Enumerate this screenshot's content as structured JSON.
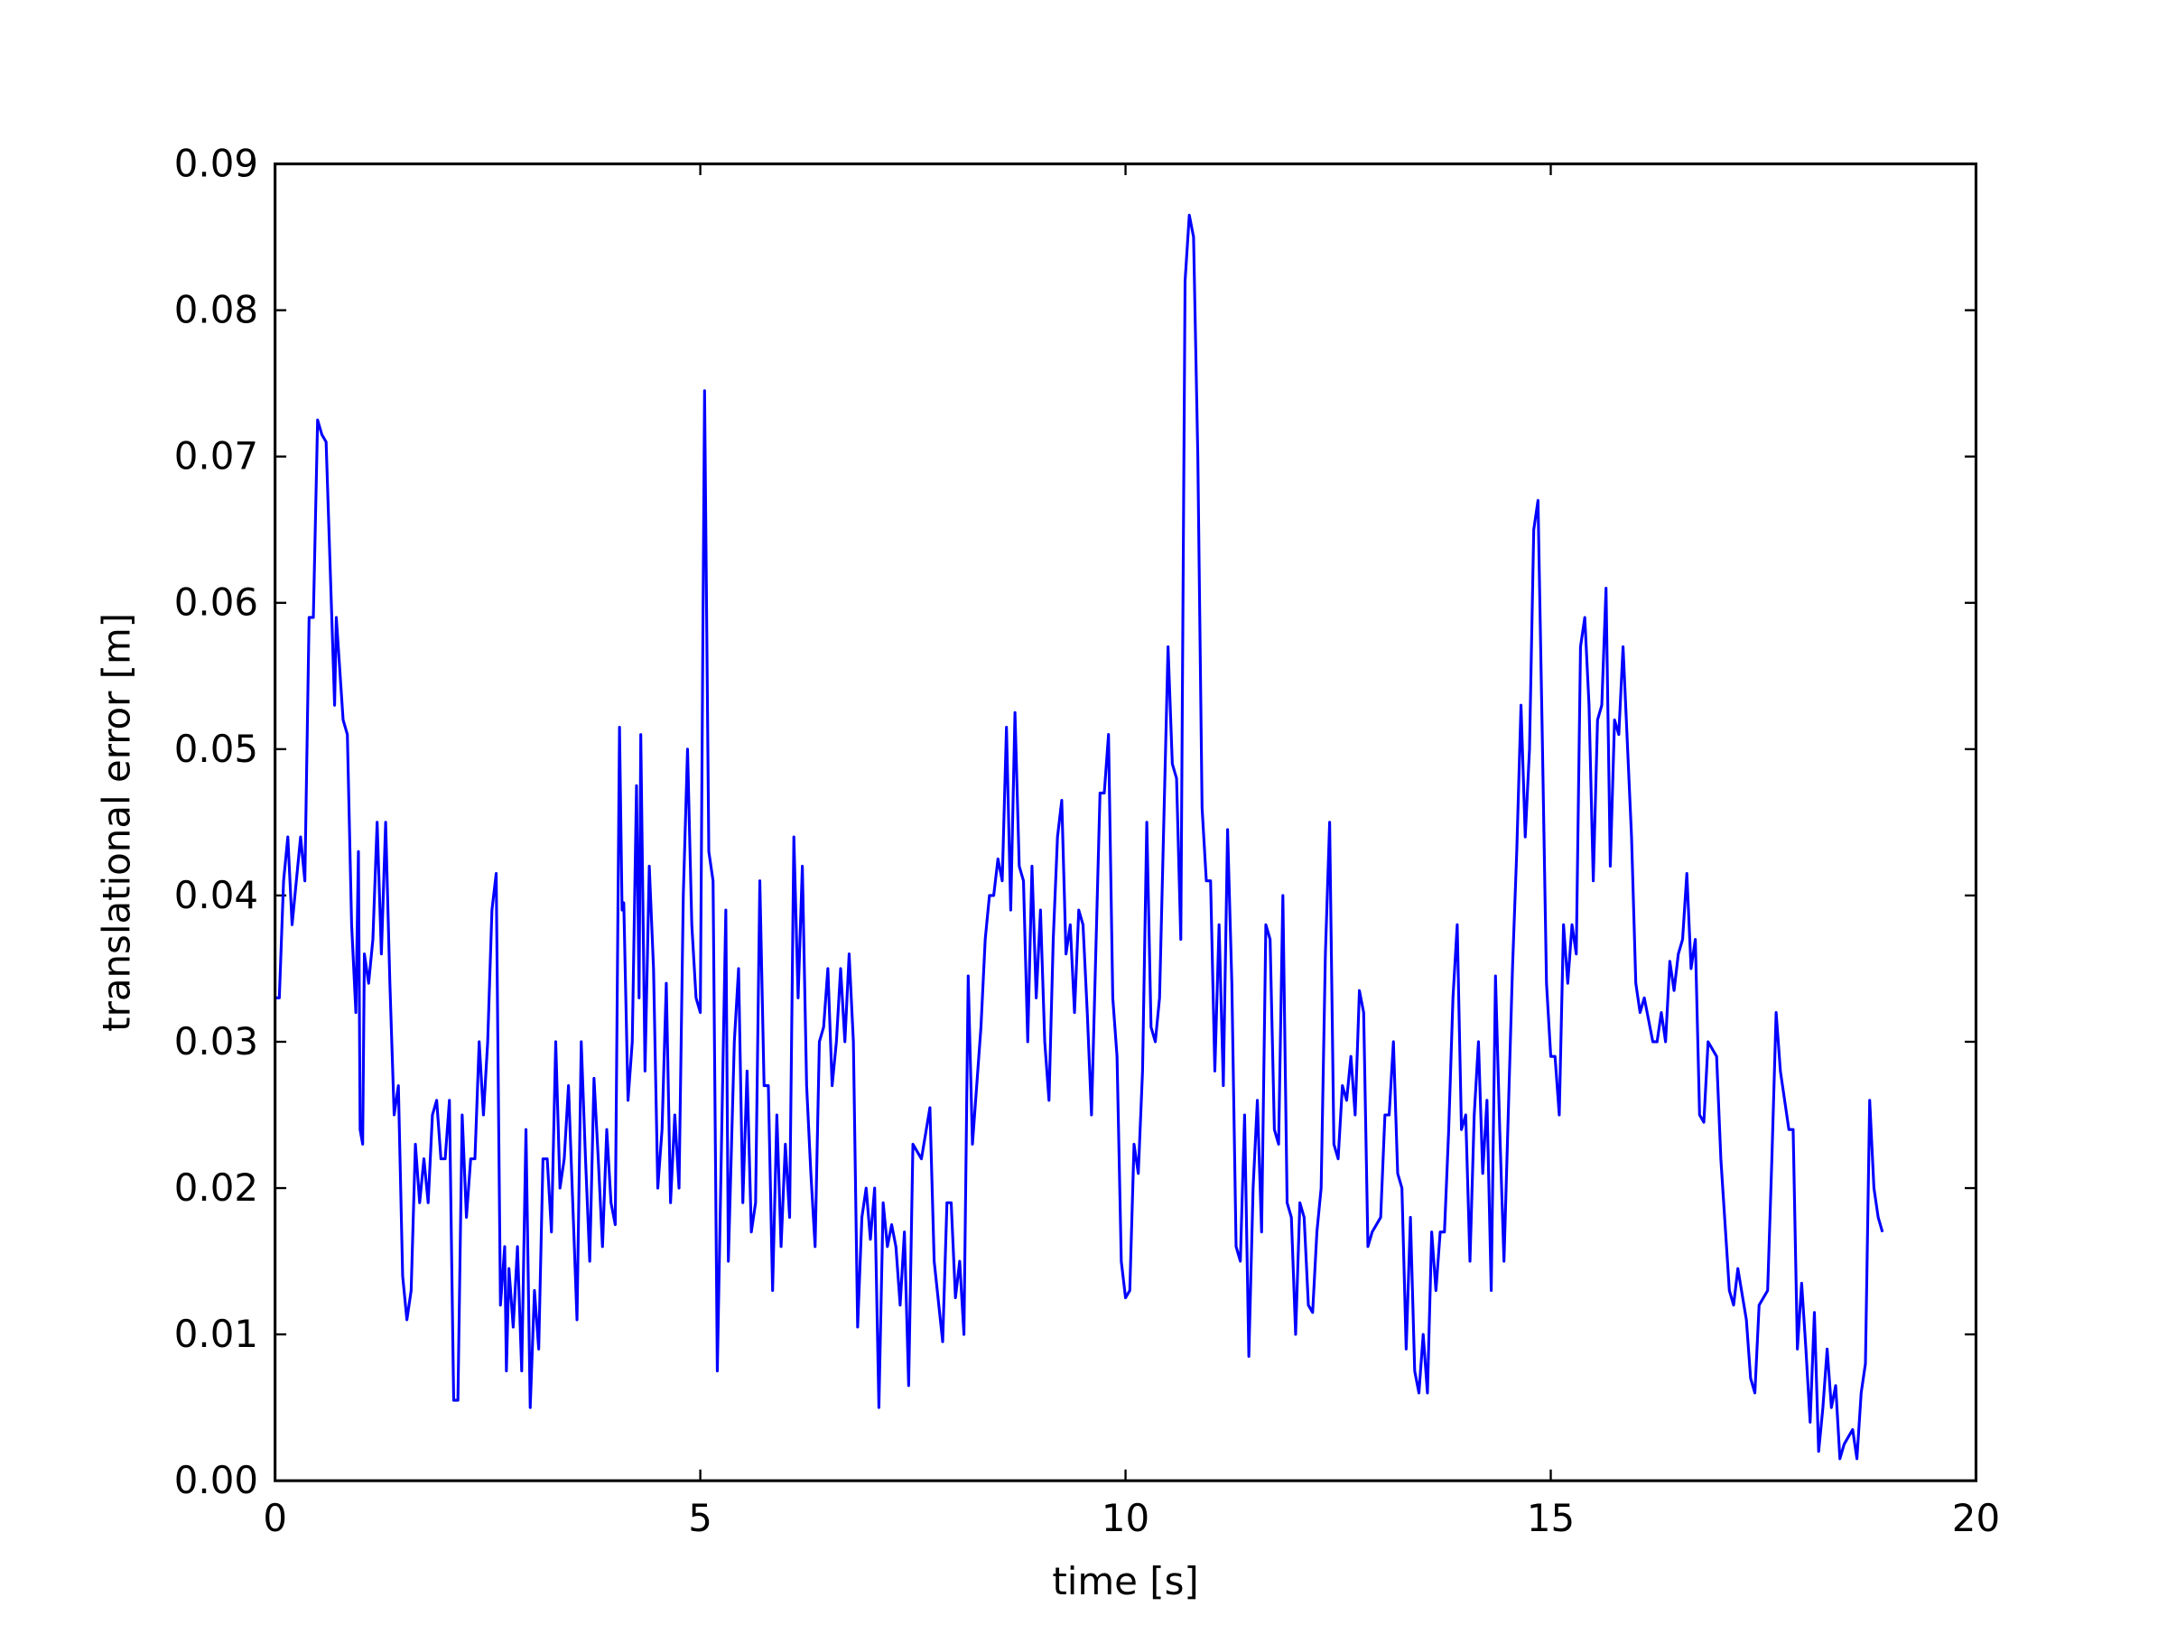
{
  "chart_data": {
    "type": "line",
    "xlabel": "time [s]",
    "ylabel": "translational error [m]",
    "xlim": [
      0,
      20
    ],
    "xticks": [
      0,
      5,
      10,
      15,
      20
    ],
    "ylim": [
      0,
      0.09
    ],
    "yticks": [
      {
        "value": 0,
        "label": "0.00"
      },
      0.01,
      0.02,
      0.03,
      0.04,
      0.05,
      0.06,
      0.07,
      0.08,
      0.09
    ],
    "grid": false,
    "x": [
      0,
      0.05,
      0.1,
      0.15,
      0.2,
      0.3,
      0.35,
      0.4,
      0.45,
      0.5,
      0.55,
      0.6,
      0.7,
      0.72,
      0.8,
      0.85,
      0.9,
      0.95,
      0.98,
      1.0,
      1.03,
      1.05,
      1.1,
      1.15,
      1.2,
      1.25,
      1.3,
      1.35,
      1.4,
      1.45,
      1.5,
      1.55,
      1.6,
      1.65,
      1.7,
      1.75,
      1.8,
      1.85,
      1.9,
      1.95,
      2.0,
      2.05,
      2.1,
      2.15,
      2.2,
      2.25,
      2.3,
      2.35,
      2.4,
      2.45,
      2.5,
      2.55,
      2.6,
      2.65,
      2.7,
      2.72,
      2.75,
      2.8,
      2.85,
      2.9,
      2.95,
      3.0,
      3.05,
      3.1,
      3.15,
      3.2,
      3.25,
      3.3,
      3.35,
      3.4,
      3.45,
      3.5,
      3.55,
      3.6,
      3.65,
      3.7,
      3.75,
      3.8,
      3.85,
      3.9,
      3.95,
      4.0,
      4.05,
      4.08,
      4.1,
      4.15,
      4.2,
      4.25,
      4.28,
      4.3,
      4.35,
      4.4,
      4.45,
      4.5,
      4.55,
      4.6,
      4.65,
      4.7,
      4.75,
      4.8,
      4.85,
      4.9,
      4.95,
      5.0,
      5.05,
      5.1,
      5.15,
      5.2,
      5.3,
      5.33,
      5.4,
      5.45,
      5.5,
      5.55,
      5.6,
      5.65,
      5.7,
      5.75,
      5.8,
      5.85,
      5.9,
      5.95,
      6.0,
      6.05,
      6.1,
      6.15,
      6.2,
      6.25,
      6.3,
      6.35,
      6.4,
      6.45,
      6.5,
      6.55,
      6.6,
      6.65,
      6.7,
      6.75,
      6.8,
      6.85,
      6.9,
      6.95,
      7.0,
      7.05,
      7.1,
      7.15,
      7.2,
      7.25,
      7.3,
      7.35,
      7.4,
      7.45,
      7.5,
      7.6,
      7.7,
      7.75,
      7.85,
      7.9,
      7.95,
      8.0,
      8.05,
      8.1,
      8.15,
      8.2,
      8.3,
      8.35,
      8.4,
      8.45,
      8.5,
      8.55,
      8.6,
      8.65,
      8.7,
      8.75,
      8.8,
      8.85,
      8.9,
      8.95,
      9.0,
      9.05,
      9.1,
      9.15,
      9.2,
      9.25,
      9.3,
      9.35,
      9.4,
      9.45,
      9.5,
      9.55,
      9.6,
      9.65,
      9.7,
      9.75,
      9.8,
      9.85,
      9.9,
      9.95,
      10.0,
      10.05,
      10.1,
      10.15,
      10.2,
      10.25,
      10.3,
      10.35,
      10.4,
      10.5,
      10.55,
      10.6,
      10.65,
      10.7,
      10.75,
      10.8,
      10.85,
      10.9,
      10.95,
      11.0,
      11.05,
      11.1,
      11.15,
      11.2,
      11.25,
      11.3,
      11.35,
      11.4,
      11.45,
      11.5,
      11.55,
      11.6,
      11.65,
      11.7,
      11.75,
      11.8,
      11.85,
      11.9,
      11.95,
      12.0,
      12.05,
      12.1,
      12.15,
      12.2,
      12.25,
      12.3,
      12.35,
      12.4,
      12.45,
      12.5,
      12.55,
      12.6,
      12.65,
      12.7,
      12.75,
      12.8,
      12.85,
      12.9,
      13.0,
      13.05,
      13.1,
      13.15,
      13.2,
      13.25,
      13.3,
      13.35,
      13.4,
      13.45,
      13.5,
      13.55,
      13.6,
      13.65,
      13.7,
      13.75,
      13.8,
      13.85,
      13.9,
      13.95,
      14.0,
      14.05,
      14.1,
      14.15,
      14.2,
      14.25,
      14.3,
      14.35,
      14.4,
      14.45,
      14.5,
      14.55,
      14.6,
      14.65,
      14.7,
      14.75,
      14.8,
      14.85,
      14.9,
      14.95,
      15.0,
      15.05,
      15.1,
      15.15,
      15.2,
      15.25,
      15.3,
      15.35,
      15.4,
      15.45,
      15.5,
      15.55,
      15.6,
      15.65,
      15.7,
      15.75,
      15.8,
      15.85,
      15.95,
      16.0,
      16.05,
      16.1,
      16.2,
      16.25,
      16.3,
      16.35,
      16.4,
      16.45,
      16.5,
      16.55,
      16.6,
      16.65,
      16.7,
      16.75,
      16.8,
      16.85,
      16.95,
      17.0,
      17.1,
      17.15,
      17.2,
      17.3,
      17.35,
      17.4,
      17.45,
      17.55,
      17.6,
      17.65,
      17.7,
      17.8,
      17.85,
      17.9,
      17.95,
      18.0,
      18.05,
      18.1,
      18.15,
      18.2,
      18.25,
      18.3,
      18.35,
      18.4,
      18.45,
      18.5,
      18.55,
      18.6,
      18.65,
      18.7,
      18.75,
      18.8,
      18.85,
      18.9
    ],
    "series": [
      {
        "color": "#0000ff",
        "values": [
          0.033,
          0.033,
          0.041,
          0.044,
          0.038,
          0.044,
          0.041,
          0.059,
          0.059,
          0.0725,
          0.0715,
          0.071,
          0.053,
          0.059,
          0.052,
          0.051,
          0.038,
          0.032,
          0.043,
          0.024,
          0.023,
          0.036,
          0.034,
          0.037,
          0.045,
          0.036,
          0.045,
          0.034,
          0.025,
          0.027,
          0.014,
          0.011,
          0.013,
          0.023,
          0.019,
          0.022,
          0.019,
          0.025,
          0.026,
          0.022,
          0.022,
          0.026,
          0.0055,
          0.0055,
          0.025,
          0.018,
          0.022,
          0.022,
          0.03,
          0.025,
          0.03,
          0.039,
          0.0415,
          0.012,
          0.016,
          0.0075,
          0.0145,
          0.0105,
          0.016,
          0.0075,
          0.024,
          0.005,
          0.013,
          0.009,
          0.022,
          0.022,
          0.017,
          0.03,
          0.02,
          0.022,
          0.027,
          0.019,
          0.011,
          0.03,
          0.022,
          0.015,
          0.0275,
          0.022,
          0.016,
          0.024,
          0.019,
          0.0175,
          0.0515,
          0.039,
          0.0395,
          0.026,
          0.03,
          0.0475,
          0.033,
          0.051,
          0.028,
          0.042,
          0.035,
          0.02,
          0.024,
          0.034,
          0.019,
          0.025,
          0.02,
          0.04,
          0.05,
          0.038,
          0.033,
          0.032,
          0.0745,
          0.043,
          0.041,
          0.0075,
          0.039,
          0.015,
          0.03,
          0.035,
          0.019,
          0.028,
          0.017,
          0.019,
          0.041,
          0.027,
          0.027,
          0.013,
          0.025,
          0.016,
          0.023,
          0.018,
          0.044,
          0.033,
          0.042,
          0.027,
          0.021,
          0.016,
          0.03,
          0.031,
          0.035,
          0.027,
          0.03,
          0.035,
          0.03,
          0.036,
          0.03,
          0.0105,
          0.018,
          0.02,
          0.0165,
          0.02,
          0.005,
          0.019,
          0.016,
          0.0175,
          0.016,
          0.012,
          0.017,
          0.0065,
          0.023,
          0.022,
          0.0255,
          0.015,
          0.0095,
          0.019,
          0.019,
          0.0125,
          0.015,
          0.01,
          0.0345,
          0.023,
          0.031,
          0.037,
          0.04,
          0.04,
          0.0425,
          0.041,
          0.0515,
          0.039,
          0.0525,
          0.042,
          0.041,
          0.03,
          0.042,
          0.033,
          0.039,
          0.03,
          0.026,
          0.037,
          0.044,
          0.0465,
          0.036,
          0.038,
          0.032,
          0.039,
          0.038,
          0.032,
          0.025,
          0.036,
          0.047,
          0.047,
          0.051,
          0.033,
          0.029,
          0.015,
          0.0125,
          0.013,
          0.023,
          0.021,
          0.028,
          0.045,
          0.031,
          0.03,
          0.033,
          0.057,
          0.049,
          0.048,
          0.037,
          0.082,
          0.0865,
          0.085,
          0.07,
          0.046,
          0.041,
          0.041,
          0.028,
          0.038,
          0.027,
          0.0445,
          0.034,
          0.016,
          0.015,
          0.025,
          0.0085,
          0.02,
          0.026,
          0.017,
          0.038,
          0.037,
          0.024,
          0.023,
          0.04,
          0.019,
          0.018,
          0.01,
          0.019,
          0.018,
          0.012,
          0.0115,
          0.017,
          0.02,
          0.036,
          0.045,
          0.023,
          0.022,
          0.027,
          0.026,
          0.029,
          0.025,
          0.0335,
          0.032,
          0.016,
          0.017,
          0.018,
          0.025,
          0.025,
          0.03,
          0.021,
          0.02,
          0.009,
          0.018,
          0.0075,
          0.006,
          0.01,
          0.006,
          0.017,
          0.013,
          0.017,
          0.017,
          0.024,
          0.033,
          0.038,
          0.024,
          0.025,
          0.015,
          0.025,
          0.03,
          0.021,
          0.026,
          0.013,
          0.0345,
          0.024,
          0.015,
          0.025,
          0.035,
          0.043,
          0.053,
          0.044,
          0.05,
          0.065,
          0.067,
          0.051,
          0.034,
          0.029,
          0.029,
          0.025,
          0.038,
          0.034,
          0.038,
          0.036,
          0.057,
          0.059,
          0.053,
          0.041,
          0.052,
          0.053,
          0.061,
          0.042,
          0.052,
          0.051,
          0.057,
          0.044,
          0.034,
          0.032,
          0.033,
          0.03,
          0.03,
          0.032,
          0.03,
          0.0355,
          0.0335,
          0.036,
          0.037,
          0.0415,
          0.035,
          0.037,
          0.025,
          0.0245,
          0.03,
          0.029,
          0.022,
          0.013,
          0.012,
          0.0145,
          0.011,
          0.007,
          0.006,
          0.012,
          0.013,
          0.022,
          0.032,
          0.028,
          0.024,
          0.024,
          0.009,
          0.0135,
          0.009,
          0.004,
          0.0115,
          0.002,
          0.005,
          0.009,
          0.005,
          0.0065,
          0.0015,
          0.0025,
          0.003,
          0.0035,
          0.0015,
          0.006,
          0.008,
          0.026,
          0.02,
          0.018,
          0.017
        ]
      }
    ]
  }
}
